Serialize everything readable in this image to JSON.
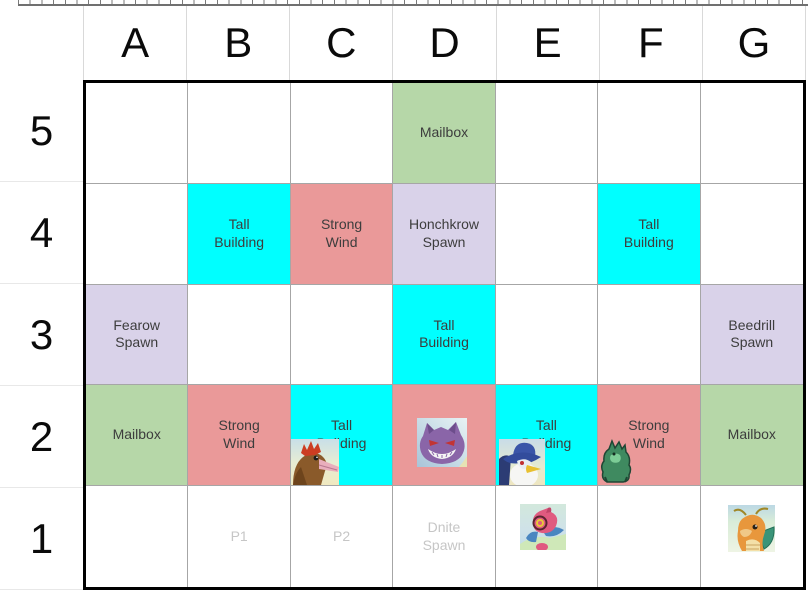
{
  "column_headers": [
    "A",
    "B",
    "C",
    "D",
    "E",
    "F",
    "G"
  ],
  "row_headers": [
    "5",
    "4",
    "3",
    "2",
    "1"
  ],
  "colors": {
    "cyan": "#00ffff",
    "salmon": "#ea9999",
    "lavender": "#d9d2e9",
    "green": "#b6d7a8",
    "white": "#ffffff",
    "label_text": "#3d3d3d",
    "faint_text": "#c6c6c6",
    "grid_line": "#a6a6a6",
    "outer_border": "#000000"
  },
  "grid": {
    "rows": [
      {
        "row": "5",
        "cells": [
          {
            "col": "A",
            "bg": "white",
            "label": ""
          },
          {
            "col": "B",
            "bg": "white",
            "label": ""
          },
          {
            "col": "C",
            "bg": "white",
            "label": ""
          },
          {
            "col": "D",
            "bg": "green",
            "label": "Mailbox"
          },
          {
            "col": "E",
            "bg": "white",
            "label": ""
          },
          {
            "col": "F",
            "bg": "white",
            "label": ""
          },
          {
            "col": "G",
            "bg": "white",
            "label": ""
          }
        ]
      },
      {
        "row": "4",
        "cells": [
          {
            "col": "A",
            "bg": "white",
            "label": ""
          },
          {
            "col": "B",
            "bg": "cyan",
            "label": "Tall Building"
          },
          {
            "col": "C",
            "bg": "salmon",
            "label": "Strong Wind"
          },
          {
            "col": "D",
            "bg": "lavender",
            "label": "Honchkrow Spawn"
          },
          {
            "col": "E",
            "bg": "white",
            "label": ""
          },
          {
            "col": "F",
            "bg": "cyan",
            "label": "Tall Building"
          },
          {
            "col": "G",
            "bg": "white",
            "label": ""
          }
        ]
      },
      {
        "row": "3",
        "cells": [
          {
            "col": "A",
            "bg": "lavender",
            "label": "Fearow Spawn"
          },
          {
            "col": "B",
            "bg": "white",
            "label": ""
          },
          {
            "col": "C",
            "bg": "white",
            "label": ""
          },
          {
            "col": "D",
            "bg": "cyan",
            "label": "Tall Building"
          },
          {
            "col": "E",
            "bg": "white",
            "label": ""
          },
          {
            "col": "F",
            "bg": "white",
            "label": ""
          },
          {
            "col": "G",
            "bg": "lavender",
            "label": "Beedrill Spawn"
          }
        ]
      },
      {
        "row": "2",
        "cells": [
          {
            "col": "A",
            "bg": "green",
            "label": "Mailbox"
          },
          {
            "col": "B",
            "bg": "salmon",
            "label": "Strong Wind"
          },
          {
            "col": "C",
            "bg": "cyan",
            "label": "Tall Building",
            "sprite": "fearow"
          },
          {
            "col": "D",
            "bg": "salmon",
            "label": "Strong Wind",
            "sprite": "gengar"
          },
          {
            "col": "E",
            "bg": "cyan",
            "label": "Tall Building",
            "sprite": "honchkrow"
          },
          {
            "col": "F",
            "bg": "salmon",
            "label": "Strong Wind",
            "sprite": "tyranitar"
          },
          {
            "col": "G",
            "bg": "green",
            "label": "Mailbox"
          }
        ]
      },
      {
        "row": "1",
        "cells": [
          {
            "col": "A",
            "bg": "white",
            "label": ""
          },
          {
            "col": "B",
            "bg": "white",
            "label": "P1",
            "faint": true
          },
          {
            "col": "C",
            "bg": "white",
            "label": "P2",
            "faint": true
          },
          {
            "col": "D",
            "bg": "white",
            "label": "Dnite Spawn",
            "faint": true
          },
          {
            "col": "E",
            "bg": "white",
            "label": "",
            "sprite": "porygon-z"
          },
          {
            "col": "F",
            "bg": "white",
            "label": ""
          },
          {
            "col": "G",
            "bg": "white",
            "label": "",
            "sprite": "dragonite"
          }
        ]
      }
    ]
  }
}
